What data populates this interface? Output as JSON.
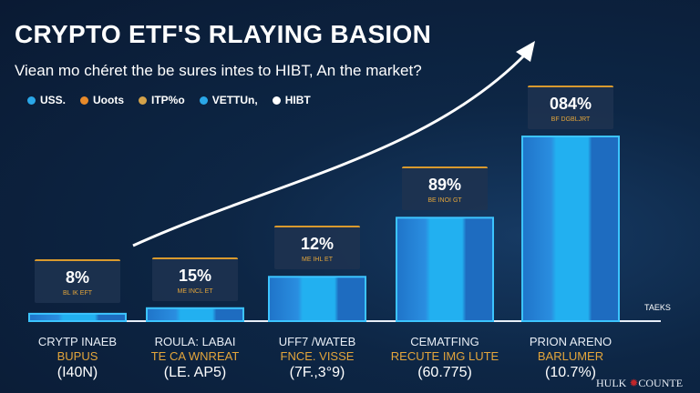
{
  "title": "CRYPTO ETF'S RLAYING BASION",
  "subtitle": "Viean mo chéret the be sures intes to HIBT, An the market?",
  "legend": [
    {
      "label": "USS.",
      "color": "#2aa7e8"
    },
    {
      "label": "Uoots",
      "color": "#e88a2a"
    },
    {
      "label": "ITP%o",
      "color": "#d4a24a"
    },
    {
      "label": "VETTUn,",
      "color": "#2aa7e8"
    },
    {
      "label": "HIBT",
      "color": "#ffffff"
    }
  ],
  "chart_data": {
    "type": "bar",
    "title": "CRYPTO ETF'S RLAYING BASION",
    "axis_label": "TAEKS",
    "categories": [
      {
        "name": "CRYTP INAEB",
        "sub": "BUPUS",
        "paren": "(I40N)"
      },
      {
        "name": "ROULA: LABAI",
        "sub": "TE CA WNREAT",
        "paren": "(LE. AP5)"
      },
      {
        "name": "UFF7 /WATEB",
        "sub": "FNCE. VISSE",
        "paren": "(7F.,3°9)"
      },
      {
        "name": "CEMATFING",
        "sub": "RECUTE IMG LUTE",
        "paren": "(60.775)"
      },
      {
        "name": "PRION ARENO",
        "sub": "BARLUMER",
        "paren": "(10.7%)"
      }
    ],
    "data_labels": [
      {
        "value": "8%",
        "sub": "BL IK EFT"
      },
      {
        "value": "15%",
        "sub": "ME INCL ET"
      },
      {
        "value": "12%",
        "sub": "ME IHL ET"
      },
      {
        "value": "89%",
        "sub": "BE INOI GT"
      },
      {
        "value": "084%",
        "sub": "BF DGBLJRT"
      }
    ],
    "bar_levels_percent_of_max": [
      4,
      7,
      24,
      56,
      100
    ],
    "trend_arrow": true,
    "bar_color": "#2a9ae8"
  },
  "brand": {
    "left": "HULK",
    "right": "COUNTE"
  }
}
